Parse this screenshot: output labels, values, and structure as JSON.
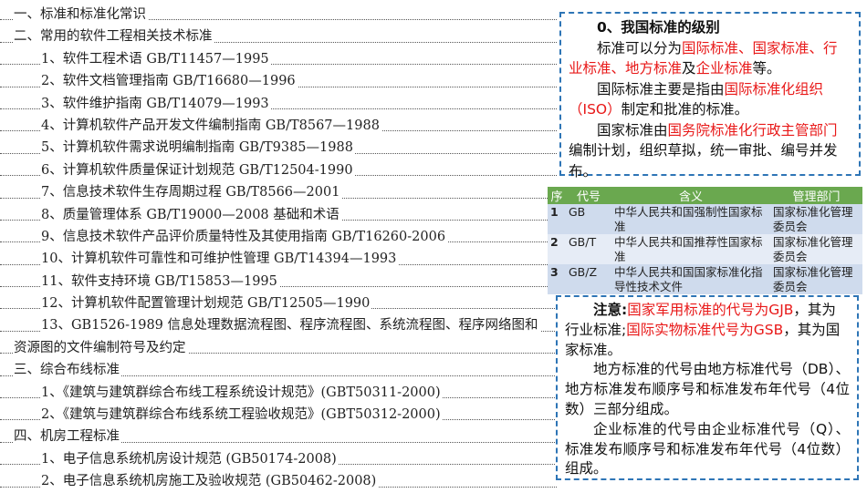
{
  "toc": [
    {
      "level": 0,
      "text": "一、标准和标准化常识"
    },
    {
      "level": 0,
      "text": "二、常用的软件工程相关技术标准"
    },
    {
      "level": 1,
      "text": "1、软件工程术语 GB/T11457—1995"
    },
    {
      "level": 1,
      "text": "2、软件文档管理指南 GB/T16680—1996"
    },
    {
      "level": 1,
      "text": "3、软件维护指南 GB/T14079—1993"
    },
    {
      "level": 1,
      "text": "4、计算机软件产品开发文件编制指南 GB/T8567—1988"
    },
    {
      "level": 1,
      "text": "5、计算机软件需求说明编制指南 GB/T9385—1988"
    },
    {
      "level": 1,
      "text": "6、计算机软件质量保证计划规范 GB/T12504-1990"
    },
    {
      "level": 1,
      "text": "7、信息技术软件生存周期过程 GB/T8566—2001"
    },
    {
      "level": 1,
      "text": "8、质量管理体系 GB/T19000—2008 基础和术语"
    },
    {
      "level": 1,
      "text": "9、信息技术软件产品评价质量特性及其使用指南 GB/T16260-2006"
    },
    {
      "level": 1,
      "text": "10、计算机软件可靠性和可维护性管理 GB/T14394—1993"
    },
    {
      "level": 1,
      "text": "11、软件支持环境 GB/T15853—1995"
    },
    {
      "level": 1,
      "text": "12、计算机软件配置管理计划规范 GB/T12505—1990"
    },
    {
      "level": 1,
      "text": "13、GB1526-1989 信息处理数据流程图、程序流程图、系统流程图、程序网络图和"
    },
    {
      "level": 0,
      "text": "资源图的文件编制符号及约定"
    },
    {
      "level": 0,
      "text": "三、综合布线标准"
    },
    {
      "level": 1,
      "text": "1、《建筑与建筑群综合布线工程系统设计规范》(GBT50311-2000)"
    },
    {
      "level": 1,
      "text": "2、《建筑与建筑群综合布线系统工程验收规范》(GBT50312-2000)"
    },
    {
      "level": 0,
      "text": "四、机房工程标准"
    },
    {
      "level": 1,
      "text": "1、电子信息系统机房设计规范 (GB50174-2008)"
    },
    {
      "level": 1,
      "text": "2、电子信息系统机房施工及验收规范 (GB50462-2008)"
    }
  ],
  "box1": {
    "title": "0、我国标准的级别",
    "p1": [
      "标准可以分为",
      "国际标准、国家标准、行业标准、地方标准",
      "及",
      "企业标准",
      "等。"
    ],
    "p2": [
      "国际标准主要是指由",
      "国际标准化组织（ISO）",
      "制定和批准的标准。"
    ],
    "p3": [
      "国家标准由",
      "国务院标准化行政主管部门",
      "编制计划，组织草拟，统一审批、编号并发布。"
    ]
  },
  "table": {
    "headers": [
      "序",
      "代号",
      "含义",
      "管理部门"
    ],
    "rows": [
      [
        "1",
        "GB",
        "中华人民共和国强制性国家标准",
        "国家标准化管理委员会"
      ],
      [
        "2",
        "GB/T",
        "中华人民共和国推荐性国家标准",
        "国家标准化管理委员会"
      ],
      [
        "3",
        "GB/Z",
        "中华人民共和国国家标准化指导性技术文件",
        "国家标准化管理委员会"
      ]
    ]
  },
  "box2": {
    "note_label": "注意:",
    "note1": "国家军用标准的代号为GJB",
    "note2": "，其为行业标准;",
    "note3": "国际实物标准代号为GSB",
    "note4": "，其为国家标准。",
    "p2": "地方标准的代号由地方标准代号（DB）、地方标准发布顺序号和标准发布年代号（4位数）三部分组成。",
    "p3": "企业标准的代号由企业标准代号（Q）、标准发布顺序号和标准发布年代号（4位数）组成。"
  },
  "colors": {
    "red": "#e81818",
    "border": "#2e75b6",
    "table_header": "#6aa84f"
  }
}
